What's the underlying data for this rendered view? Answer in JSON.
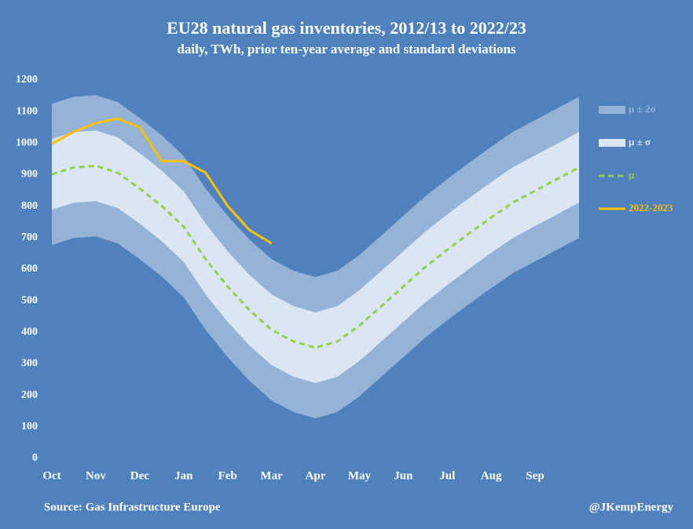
{
  "chart_data": {
    "type": "band-line",
    "title": "EU28 natural gas inventories, 2012/13 to 2022/23",
    "subtitle": "daily, TWh, prior ten-year average and standard deviations",
    "source": "Source: Gas Infrastructure Europe",
    "credit": "@JKempEnergy",
    "categories": [
      "Oct",
      null,
      "Nov",
      null,
      "Dec",
      null,
      "Jan",
      null,
      "Feb",
      null,
      "Mar",
      null,
      "Apr",
      null,
      "May",
      null,
      "Jun",
      null,
      "Jul",
      null,
      "Aug",
      null,
      "Sep",
      null,
      null
    ],
    "ylim": [
      0,
      1200
    ],
    "yticks": [
      0,
      100,
      200,
      300,
      400,
      500,
      600,
      700,
      800,
      900,
      1000,
      1100,
      1200
    ],
    "grid": false,
    "legend": "right",
    "series": [
      {
        "name": "μ ± 2σ",
        "kind": "band",
        "color": "#95b3d7",
        "upper": [
          1125,
          1147,
          1152,
          1130,
          1080,
          1025,
          959,
          856,
          769,
          694,
          632,
          595,
          575,
          595,
          645,
          707,
          769,
          831,
          886,
          938,
          988,
          1036,
          1073,
          1110,
          1147
        ],
        "lower": [
          677,
          699,
          704,
          682,
          632,
          577,
          511,
          408,
          321,
          246,
          184,
          147,
          127,
          147,
          197,
          259,
          321,
          383,
          438,
          490,
          540,
          588,
          625,
          662,
          699
        ]
      },
      {
        "name": "μ ± σ",
        "kind": "band",
        "color": "#dce6f2",
        "upper": [
          1013,
          1035,
          1040,
          1018,
          968,
          913,
          847,
          744,
          657,
          582,
          520,
          483,
          463,
          483,
          533,
          595,
          657,
          719,
          774,
          826,
          876,
          924,
          961,
          998,
          1035
        ],
        "lower": [
          789,
          811,
          816,
          794,
          744,
          689,
          623,
          520,
          433,
          358,
          296,
          259,
          239,
          259,
          309,
          371,
          433,
          495,
          550,
          602,
          652,
          700,
          737,
          774,
          811
        ]
      },
      {
        "name": "μ",
        "kind": "dashed",
        "color": "#92d050",
        "values": [
          901,
          923,
          928,
          906,
          856,
          801,
          735,
          632,
          545,
          470,
          408,
          371,
          351,
          371,
          421,
          483,
          545,
          607,
          662,
          714,
          764,
          812,
          849,
          886,
          923
        ]
      },
      {
        "name": "2022-2023",
        "kind": "line",
        "color": "#ffc000",
        "values": [
          998,
          1036,
          1063,
          1078,
          1050,
          943,
          943,
          906,
          801,
          724,
          682,
          null,
          null,
          null,
          null,
          null,
          null,
          null,
          null,
          null,
          null,
          null,
          null,
          null,
          null
        ]
      }
    ]
  }
}
